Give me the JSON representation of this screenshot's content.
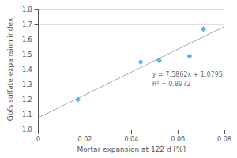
{
  "chart_data": {
    "type": "scatter",
    "xlabel": "Mortar expansion at 122 d [%]",
    "ylabel": "Gbfs sulfate expansion index",
    "series": [
      {
        "type": "line",
        "color": "#aaaaaa",
        "line_style": "solid",
        "x": [
          0,
          0.08
        ],
        "values": [
          1.0795,
          1.686396
        ]
      },
      {
        "type": "scatter",
        "color": "#29ABD4",
        "marker": "diamond",
        "x": [
          0.017,
          0.044,
          0.052,
          0.065,
          0.071
        ],
        "values": [
          1.2,
          1.45,
          1.46,
          1.49,
          1.67
        ]
      }
    ],
    "annotations": [
      {
        "text": "y = 7.5862x + 1.0795\nR² = 0.8972",
        "x": 0.049,
        "y": 1.4
      }
    ],
    "xlim": [
      0,
      0.08
    ],
    "xticks": [
      0,
      0.02,
      0.04,
      0.06,
      0.08
    ],
    "ylim": [
      1.0,
      1.8
    ],
    "yticks": [
      {
        "value": 1.0,
        "label": "1.0"
      },
      1.1,
      1.2,
      1.3,
      1.4,
      1.5,
      1.6,
      1.7,
      1.8
    ],
    "grid": "y"
  }
}
